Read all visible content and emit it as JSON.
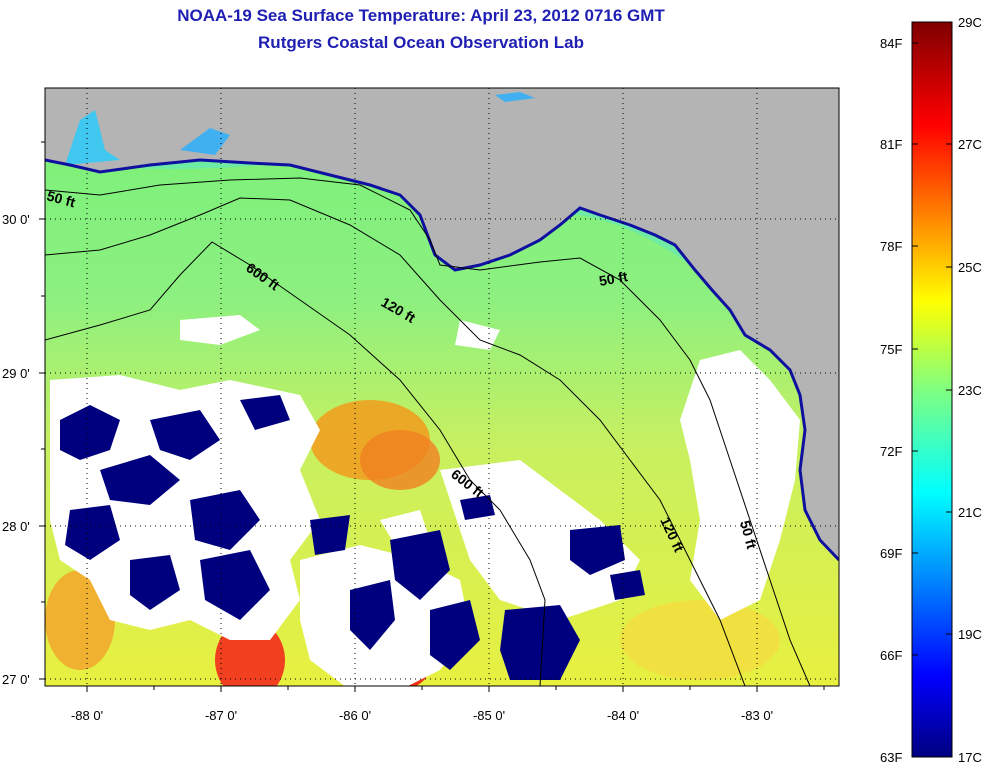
{
  "title": "NOAA-19 Sea Surface Temperature:  April 23, 2012 0716 GMT",
  "subtitle": "Rutgers Coastal Ocean Observation Lab",
  "lon_ticks": [
    "-88 0'",
    "-87 0'",
    "-86 0'",
    "-85 0'",
    "-84 0'",
    "-83 0'"
  ],
  "lat_ticks": [
    "30 0'",
    "29 0'",
    "28 0'",
    "27 0'"
  ],
  "contour_labels": [
    "50 ft",
    "600 ft",
    "120 ft",
    "50 ft",
    "600 ft",
    "120 ft",
    "50 ft"
  ],
  "colorbar": {
    "fahrenheit_ticks": [
      "84F",
      "81F",
      "78F",
      "75F",
      "72F",
      "69F",
      "66F",
      "63F"
    ],
    "celsius_ticks": [
      "29C",
      "27C",
      "25C",
      "23C",
      "21C",
      "19C",
      "17C"
    ]
  },
  "colors": {
    "title": "#1f1fb3",
    "land": "#b4b4b4",
    "cloud": "#ffffff",
    "cold_mask": "#00007f"
  }
}
